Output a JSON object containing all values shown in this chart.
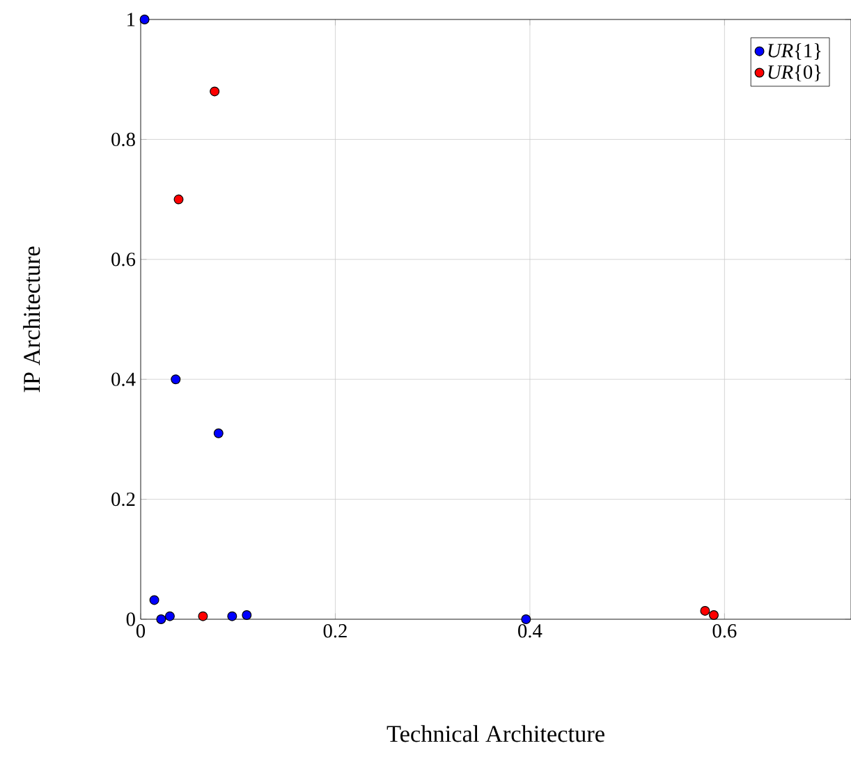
{
  "chart_data": {
    "type": "scatter",
    "xlabel": "Technical Architecture",
    "ylabel": "IP Architecture",
    "xlim": [
      0,
      0.73
    ],
    "ylim": [
      0,
      1
    ],
    "xticks": [
      0,
      0.2,
      0.4,
      0.6
    ],
    "yticks": [
      0,
      0.2,
      0.4,
      0.6,
      0.8,
      1
    ],
    "grid": true,
    "legend": "top right",
    "marker": "circle",
    "series": [
      {
        "name": "*UR*{1}",
        "color": "#0000ff",
        "x": [
          0.004,
          0.036,
          0.08,
          0.014,
          0.021,
          0.03,
          0.094,
          0.109,
          0.396
        ],
        "values": [
          1.0,
          0.4,
          0.31,
          0.032,
          0.0,
          0.005,
          0.005,
          0.007,
          0.0
        ]
      },
      {
        "name": "*UR*{0}",
        "color": "#ff0000",
        "x": [
          0.076,
          0.039,
          0.064,
          0.58,
          0.589
        ],
        "values": [
          0.88,
          0.7,
          0.005,
          0.014,
          0.007
        ]
      }
    ]
  }
}
